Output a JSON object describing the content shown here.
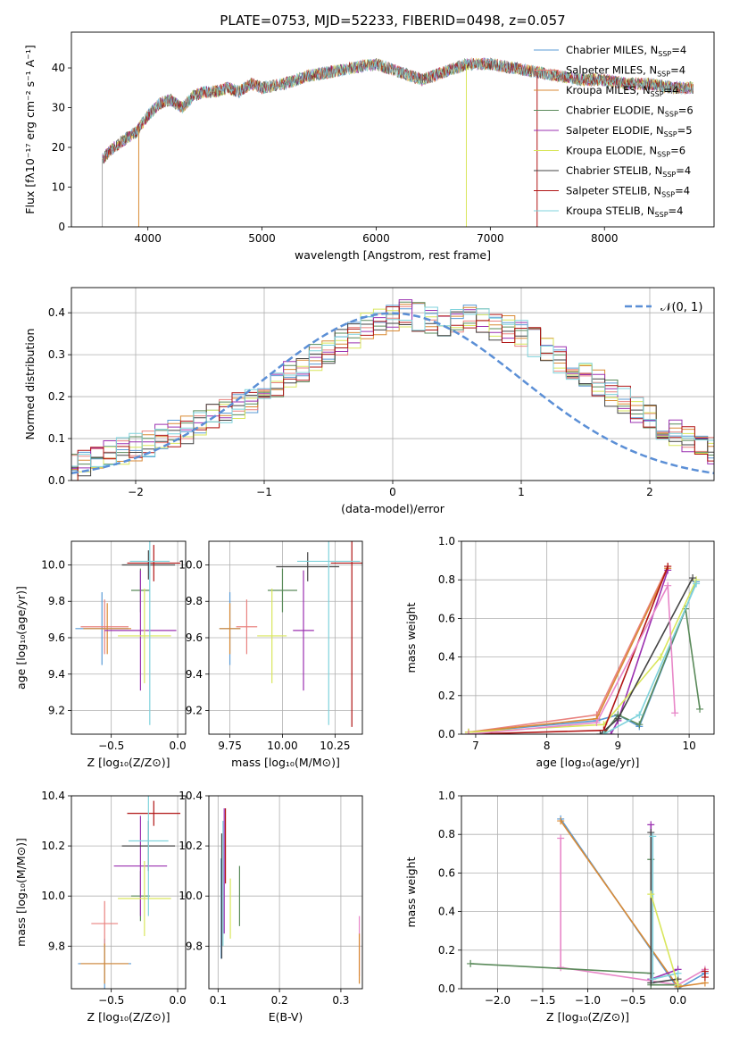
{
  "figure_title": "PLATE=0753, MJD=52233, FIBERID=0498, z=0.057",
  "chart_data": [
    {
      "id": "spectrum",
      "type": "line",
      "title": "PLATE=0753, MJD=52233, FIBERID=0498, z=0.057",
      "xlabel": "wavelength [Angstrom, rest frame]",
      "ylabel": "Flux [fλ10⁻¹⁷ erg cm⁻² s⁻¹ A⁻¹]",
      "xlim": [
        3330,
        8960
      ],
      "ylim": [
        0,
        49
      ],
      "xticks": [
        4000,
        5000,
        6000,
        7000,
        8000
      ],
      "yticks": [
        0,
        10,
        20,
        30,
        40
      ],
      "grid": false,
      "legend_position": "top-right",
      "series": [
        {
          "name": "Chabrier MILES, N",
          "sub": "SSP",
          "tail": "=4",
          "color": "#5b9bd5"
        },
        {
          "name": "Salpeter MILES, N",
          "sub": "SSP",
          "tail": "=4",
          "color": "#e9827f"
        },
        {
          "name": "Kroupa MILES, N",
          "sub": "SSP",
          "tail": "=4",
          "color": "#d98a35"
        },
        {
          "name": "Chabrier ELODIE, N",
          "sub": "SSP",
          "tail": "=6",
          "color": "#5a8a5a"
        },
        {
          "name": "Salpeter ELODIE, N",
          "sub": "SSP",
          "tail": "=5",
          "color": "#9b30b0"
        },
        {
          "name": "Kroupa ELODIE, N",
          "sub": "SSP",
          "tail": "=6",
          "color": "#d9e65c"
        },
        {
          "name": "Chabrier STELIB, N",
          "sub": "SSP",
          "tail": "=4",
          "color": "#444444"
        },
        {
          "name": "Salpeter STELIB, N",
          "sub": "SSP",
          "tail": "=4",
          "color": "#b01515"
        },
        {
          "name": "Kroupa STELIB, N",
          "sub": "SSP",
          "tail": "=4",
          "color": "#7fd3dc"
        }
      ],
      "continuum": [
        [
          3600,
          17
        ],
        [
          3700,
          20
        ],
        [
          3800,
          22
        ],
        [
          3900,
          24
        ],
        [
          3950,
          26
        ],
        [
          4000,
          28
        ],
        [
          4100,
          31
        ],
        [
          4200,
          32
        ],
        [
          4300,
          30
        ],
        [
          4400,
          33
        ],
        [
          4500,
          34
        ],
        [
          4600,
          34
        ],
        [
          4700,
          35
        ],
        [
          4800,
          34
        ],
        [
          4900,
          36
        ],
        [
          5000,
          35
        ],
        [
          5200,
          36
        ],
        [
          5400,
          38
        ],
        [
          5600,
          39
        ],
        [
          5800,
          40
        ],
        [
          6000,
          41
        ],
        [
          6200,
          39
        ],
        [
          6400,
          37
        ],
        [
          6600,
          39
        ],
        [
          6800,
          41
        ],
        [
          7000,
          41
        ],
        [
          7200,
          40
        ],
        [
          7400,
          39
        ],
        [
          7600,
          38
        ],
        [
          7800,
          37
        ],
        [
          8000,
          37
        ],
        [
          8200,
          36
        ],
        [
          8400,
          36
        ],
        [
          8600,
          35
        ],
        [
          8780,
          35
        ]
      ],
      "spikes": [
        [
          3600,
          0,
          "#aaaaaa"
        ],
        [
          3920,
          0,
          "#d98a35"
        ],
        [
          6790,
          0,
          "#d9e65c"
        ],
        [
          7410,
          0,
          "#b01515"
        ]
      ]
    },
    {
      "id": "residual-distribution",
      "type": "step",
      "xlabel": "(data-model)/error",
      "ylabel": "Normed distribution",
      "xlim": [
        -2.5,
        2.5
      ],
      "ylim": [
        0,
        0.46
      ],
      "xticks": [
        -2,
        -1,
        0,
        1,
        2
      ],
      "yticks": [
        0.0,
        0.1,
        0.2,
        0.3,
        0.4
      ],
      "grid": true,
      "legend_position": "top-right",
      "gaussian_label": "𝒩(0, 1)",
      "gaussian_color": "#5b8fd6",
      "bin_width": 0.1,
      "base_hist": [
        0.03,
        0.04,
        0.05,
        0.06,
        0.07,
        0.08,
        0.09,
        0.1,
        0.11,
        0.12,
        0.14,
        0.15,
        0.16,
        0.18,
        0.19,
        0.21,
        0.23,
        0.25,
        0.27,
        0.29,
        0.31,
        0.33,
        0.35,
        0.37,
        0.38,
        0.39,
        0.4,
        0.39,
        0.38,
        0.37,
        0.38,
        0.39,
        0.38,
        0.37,
        0.36,
        0.35,
        0.33,
        0.31,
        0.29,
        0.27,
        0.25,
        0.23,
        0.21,
        0.19,
        0.17,
        0.15,
        0.13,
        0.11,
        0.1,
        0.08,
        0.07,
        0.06,
        0.05,
        0.04,
        0.04,
        0.03,
        0.03
      ],
      "colors": [
        "#5b9bd5",
        "#e9827f",
        "#d98a35",
        "#5a8a5a",
        "#9b30b0",
        "#d9e65c",
        "#444444",
        "#b01515",
        "#7fd3dc"
      ]
    },
    {
      "id": "age-vs-Z",
      "type": "errorbar",
      "xlabel": "Z [log₁₀(Z/Z⊙)]",
      "ylabel": "age  [log₁₀(age/yr)]",
      "xlim": [
        -0.8,
        0.06
      ],
      "ylim": [
        9.07,
        10.13
      ],
      "xticks": [
        -0.5,
        0.0
      ],
      "yticks": [
        9.2,
        9.4,
        9.6,
        9.8,
        10.0
      ],
      "grid": true,
      "points": [
        {
          "x": -0.57,
          "y": 9.65,
          "xerr": 0.2,
          "yerr": 0.2,
          "color": "#5b9bd5"
        },
        {
          "x": -0.55,
          "y": 9.66,
          "xerr": 0.18,
          "yerr": 0.15,
          "color": "#e9827f"
        },
        {
          "x": -0.53,
          "y": 9.65,
          "xerr": 0.18,
          "yerr": 0.14,
          "color": "#d98a35"
        },
        {
          "x": -0.28,
          "y": 9.86,
          "xerr": 0.07,
          "yerr": 0.12,
          "color": "#5a8a5a"
        },
        {
          "x": -0.28,
          "y": 9.64,
          "xerr": 0.27,
          "yerr": 0.33,
          "color": "#9b30b0"
        },
        {
          "x": -0.25,
          "y": 9.61,
          "xerr": 0.2,
          "yerr": 0.26,
          "color": "#d9e65c"
        },
        {
          "x": -0.22,
          "y": 10.0,
          "xerr": 0.2,
          "yerr": 0.08,
          "color": "#444444"
        },
        {
          "x": -0.18,
          "y": 10.01,
          "xerr": 0.2,
          "yerr": 0.1,
          "color": "#b01515"
        },
        {
          "x": -0.21,
          "y": 10.02,
          "xerr": 0.15,
          "yerr": 0.9,
          "color": "#7fd3dc"
        }
      ]
    },
    {
      "id": "age-vs-mass",
      "type": "errorbar",
      "xlabel": "mass [log₁₀(M/M⊙)]",
      "ylabel": "",
      "xlim": [
        9.65,
        10.38
      ],
      "ylim": [
        9.07,
        10.13
      ],
      "xticks": [
        9.75,
        10.0,
        10.25
      ],
      "yticks": [
        9.2,
        9.4,
        9.6,
        9.8,
        10.0
      ],
      "grid": true,
      "points": [
        {
          "x": 9.75,
          "y": 9.65,
          "xerr": 0.05,
          "yerr": 0.2,
          "color": "#5b9bd5"
        },
        {
          "x": 9.83,
          "y": 9.66,
          "xerr": 0.05,
          "yerr": 0.15,
          "color": "#e9827f"
        },
        {
          "x": 9.75,
          "y": 9.65,
          "xerr": 0.05,
          "yerr": 0.14,
          "color": "#d98a35"
        },
        {
          "x": 10.0,
          "y": 9.86,
          "xerr": 0.07,
          "yerr": 0.12,
          "color": "#5a8a5a"
        },
        {
          "x": 10.1,
          "y": 9.64,
          "xerr": 0.05,
          "yerr": 0.33,
          "color": "#9b30b0"
        },
        {
          "x": 9.95,
          "y": 9.61,
          "xerr": 0.07,
          "yerr": 0.26,
          "color": "#d9e65c"
        },
        {
          "x": 10.12,
          "y": 9.99,
          "xerr": 0.15,
          "yerr": 0.08,
          "color": "#444444"
        },
        {
          "x": 10.33,
          "y": 10.01,
          "xerr": 0.1,
          "yerr": 0.9,
          "color": "#b01515"
        },
        {
          "x": 10.22,
          "y": 10.02,
          "xerr": 0.15,
          "yerr": 0.9,
          "color": "#7fd3dc"
        }
      ]
    },
    {
      "id": "mass-weight-vs-age",
      "type": "line",
      "xlabel": "age  [log₁₀(age/yr)]",
      "ylabel": "mass weight",
      "xlim": [
        6.8,
        10.35
      ],
      "ylim": [
        0,
        1
      ],
      "xticks": [
        7,
        8,
        9,
        10
      ],
      "yticks": [
        0.0,
        0.2,
        0.4,
        0.6,
        0.8,
        1.0
      ],
      "grid": true,
      "series": [
        {
          "color": "#5b9bd5",
          "points": [
            [
              6.9,
              0.01
            ],
            [
              8.7,
              0.07
            ],
            [
              9.0,
              0.1
            ],
            [
              9.3,
              0.04
            ],
            [
              10.1,
              0.79
            ]
          ]
        },
        {
          "color": "#e9827f",
          "points": [
            [
              6.9,
              0.01
            ],
            [
              8.7,
              0.1
            ],
            [
              9.7,
              0.87
            ]
          ]
        },
        {
          "color": "#d98a35",
          "points": [
            [
              6.9,
              0.01
            ],
            [
              8.7,
              0.08
            ],
            [
              9.7,
              0.86
            ]
          ]
        },
        {
          "color": "#5a8a5a",
          "points": [
            [
              8.8,
              0.0
            ],
            [
              9.0,
              0.1
            ],
            [
              9.3,
              0.05
            ],
            [
              9.95,
              0.65
            ],
            [
              10.15,
              0.13
            ]
          ]
        },
        {
          "color": "#9b30b0",
          "points": [
            [
              8.9,
              0.0
            ],
            [
              9.0,
              0.07
            ],
            [
              9.7,
              0.85
            ]
          ]
        },
        {
          "color": "#d9e65c",
          "points": [
            [
              6.9,
              0.01
            ],
            [
              8.8,
              0.05
            ],
            [
              9.6,
              0.4
            ],
            [
              10.1,
              0.8
            ]
          ]
        },
        {
          "color": "#444444",
          "points": [
            [
              8.75,
              0.0
            ],
            [
              9.0,
              0.08
            ],
            [
              10.05,
              0.81
            ]
          ]
        },
        {
          "color": "#b01515",
          "points": [
            [
              6.9,
              0.0
            ],
            [
              8.8,
              0.02
            ],
            [
              9.7,
              0.87
            ]
          ]
        },
        {
          "color": "#7fd3dc",
          "points": [
            [
              8.8,
              0.0
            ],
            [
              9.3,
              0.1
            ],
            [
              10.1,
              0.78
            ]
          ]
        },
        {
          "color": "#e887c8",
          "points": [
            [
              6.9,
              0.0
            ],
            [
              8.7,
              0.06
            ],
            [
              9.7,
              0.77
            ],
            [
              9.8,
              0.11
            ]
          ]
        }
      ]
    },
    {
      "id": "mass-vs-Z",
      "type": "errorbar",
      "xlabel": "Z [log₁₀(Z/Z⊙)]",
      "ylabel": "mass [log₁₀(M/M⊙)]",
      "xlim": [
        -0.8,
        0.06
      ],
      "ylim": [
        9.63,
        10.4
      ],
      "xticks": [
        -0.5,
        0.0
      ],
      "yticks": [
        9.8,
        10.0,
        10.2,
        10.4
      ],
      "grid": true,
      "points": [
        {
          "x": -0.55,
          "y": 9.73,
          "xerr": 0.2,
          "yerr": 0.1,
          "color": "#5b9bd5"
        },
        {
          "x": -0.55,
          "y": 9.89,
          "xerr": 0.1,
          "yerr": 0.09,
          "color": "#e9827f"
        },
        {
          "x": -0.55,
          "y": 9.73,
          "xerr": 0.18,
          "yerr": 0.08,
          "color": "#d98a35"
        },
        {
          "x": -0.28,
          "y": 10.0,
          "xerr": 0.07,
          "yerr": 0.1,
          "color": "#5a8a5a"
        },
        {
          "x": -0.28,
          "y": 10.12,
          "xerr": 0.2,
          "yerr": 0.2,
          "color": "#9b30b0"
        },
        {
          "x": -0.25,
          "y": 9.99,
          "xerr": 0.2,
          "yerr": 0.15,
          "color": "#d9e65c"
        },
        {
          "x": -0.22,
          "y": 10.2,
          "xerr": 0.2,
          "yerr": 0.1,
          "color": "#444444"
        },
        {
          "x": -0.18,
          "y": 10.33,
          "xerr": 0.2,
          "yerr": 0.05,
          "color": "#b01515"
        },
        {
          "x": -0.22,
          "y": 10.22,
          "xerr": 0.15,
          "yerr": 0.3,
          "color": "#7fd3dc"
        }
      ]
    },
    {
      "id": "mass-vs-ebv",
      "type": "errorbar",
      "xlabel": "E(B-V)",
      "ylabel": "",
      "xlim": [
        0.085,
        0.335
      ],
      "ylim": [
        9.63,
        10.4
      ],
      "xticks": [
        0.1,
        0.2,
        0.3
      ],
      "yticks": [
        9.8,
        10.0,
        10.2,
        10.4
      ],
      "grid": true,
      "points": [
        {
          "x": 0.105,
          "y": 9.95,
          "xerr": 0.0,
          "yerr": 0.2,
          "color": "#5b9bd5"
        },
        {
          "x": 0.33,
          "y": 9.8,
          "xerr": 0.0,
          "yerr": 0.12,
          "color": "#e887c8"
        },
        {
          "x": 0.33,
          "y": 9.75,
          "xerr": 0.0,
          "yerr": 0.1,
          "color": "#d98a35"
        },
        {
          "x": 0.135,
          "y": 10.0,
          "xerr": 0.0,
          "yerr": 0.12,
          "color": "#5a8a5a"
        },
        {
          "x": 0.11,
          "y": 10.1,
          "xerr": 0.0,
          "yerr": 0.25,
          "color": "#9b30b0"
        },
        {
          "x": 0.12,
          "y": 9.95,
          "xerr": 0.0,
          "yerr": 0.12,
          "color": "#d9e65c"
        },
        {
          "x": 0.106,
          "y": 10.0,
          "xerr": 0.0,
          "yerr": 0.25,
          "color": "#444444"
        },
        {
          "x": 0.112,
          "y": 10.2,
          "xerr": 0.0,
          "yerr": 0.15,
          "color": "#b01515"
        },
        {
          "x": 0.108,
          "y": 10.05,
          "xerr": 0.0,
          "yerr": 0.25,
          "color": "#7fd3dc"
        }
      ]
    },
    {
      "id": "mass-weight-vs-Z",
      "type": "line",
      "xlabel": "Z [log₁₀(Z/Z⊙)]",
      "ylabel": "mass weight",
      "xlim": [
        -2.4,
        0.4
      ],
      "ylim": [
        0,
        1
      ],
      "xticks": [
        -2.0,
        -1.5,
        -1.0,
        -0.5,
        0.0
      ],
      "yticks": [
        0.0,
        0.2,
        0.4,
        0.6,
        0.8,
        1.0
      ],
      "grid": true,
      "series": [
        {
          "color": "#5b9bd5",
          "points": [
            [
              -1.3,
              0.88
            ],
            [
              0.0,
              0.0
            ],
            [
              0.3,
              0.08
            ]
          ]
        },
        {
          "color": "#d98a35",
          "points": [
            [
              -1.3,
              0.87
            ],
            [
              0.0,
              0.01
            ],
            [
              0.3,
              0.03
            ]
          ]
        },
        {
          "color": "#e887c8",
          "points": [
            [
              -1.3,
              0.78
            ],
            [
              -1.3,
              0.11
            ],
            [
              0.0,
              0.02
            ],
            [
              0.3,
              0.1
            ]
          ]
        },
        {
          "color": "#5a8a5a",
          "points": [
            [
              -2.3,
              0.13
            ],
            [
              -0.3,
              0.08
            ],
            [
              -0.3,
              0.67
            ],
            [
              -0.3,
              0.02
            ],
            [
              0.0,
              0.02
            ]
          ]
        },
        {
          "color": "#9b30b0",
          "points": [
            [
              -0.3,
              0.85
            ],
            [
              -0.3,
              0.05
            ],
            [
              0.0,
              0.1
            ]
          ]
        },
        {
          "color": "#444444",
          "points": [
            [
              -0.3,
              0.81
            ],
            [
              -0.3,
              0.03
            ],
            [
              0.0,
              0.05
            ]
          ]
        },
        {
          "color": "#7fd3dc",
          "points": [
            [
              -0.28,
              0.79
            ],
            [
              -0.28,
              0.05
            ],
            [
              0.0,
              0.08
            ]
          ]
        },
        {
          "color": "#d9e65c",
          "points": [
            [
              -0.3,
              0.49
            ],
            [
              0.0,
              0.02
            ]
          ]
        },
        {
          "color": "#b01515",
          "points": [
            [
              0.3,
              0.09
            ],
            [
              0.3,
              0.06
            ]
          ]
        }
      ]
    }
  ]
}
